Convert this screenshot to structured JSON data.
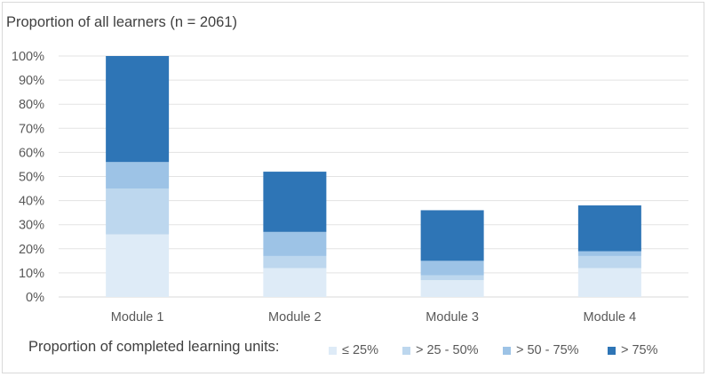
{
  "chart_data": {
    "type": "bar",
    "stacked": true,
    "title": "Proportion of all learners (n = 2061)",
    "categories": [
      "Module 1",
      "Module 2",
      "Module 3",
      "Module 4"
    ],
    "ylim": [
      0,
      100
    ],
    "yticks": [
      "0%",
      "10%",
      "20%",
      "30%",
      "40%",
      "50%",
      "60%",
      "70%",
      "80%",
      "90%",
      "100%"
    ],
    "grid": true,
    "legend_title": "Proportion of completed learning units:",
    "legend_position": "bottom",
    "series": [
      {
        "name": "≤ 25%",
        "color": "#deebf7",
        "values": [
          26,
          12,
          7,
          12
        ]
      },
      {
        "name": "> 25 - 50%",
        "color": "#bdd7ee",
        "values": [
          19,
          5,
          2,
          5
        ]
      },
      {
        "name": "> 50 - 75%",
        "color": "#9dc3e6",
        "values": [
          11,
          10,
          6,
          2
        ]
      },
      {
        "name": "> 75%",
        "color": "#2e75b6",
        "values": [
          44,
          25,
          21,
          19
        ]
      }
    ]
  }
}
